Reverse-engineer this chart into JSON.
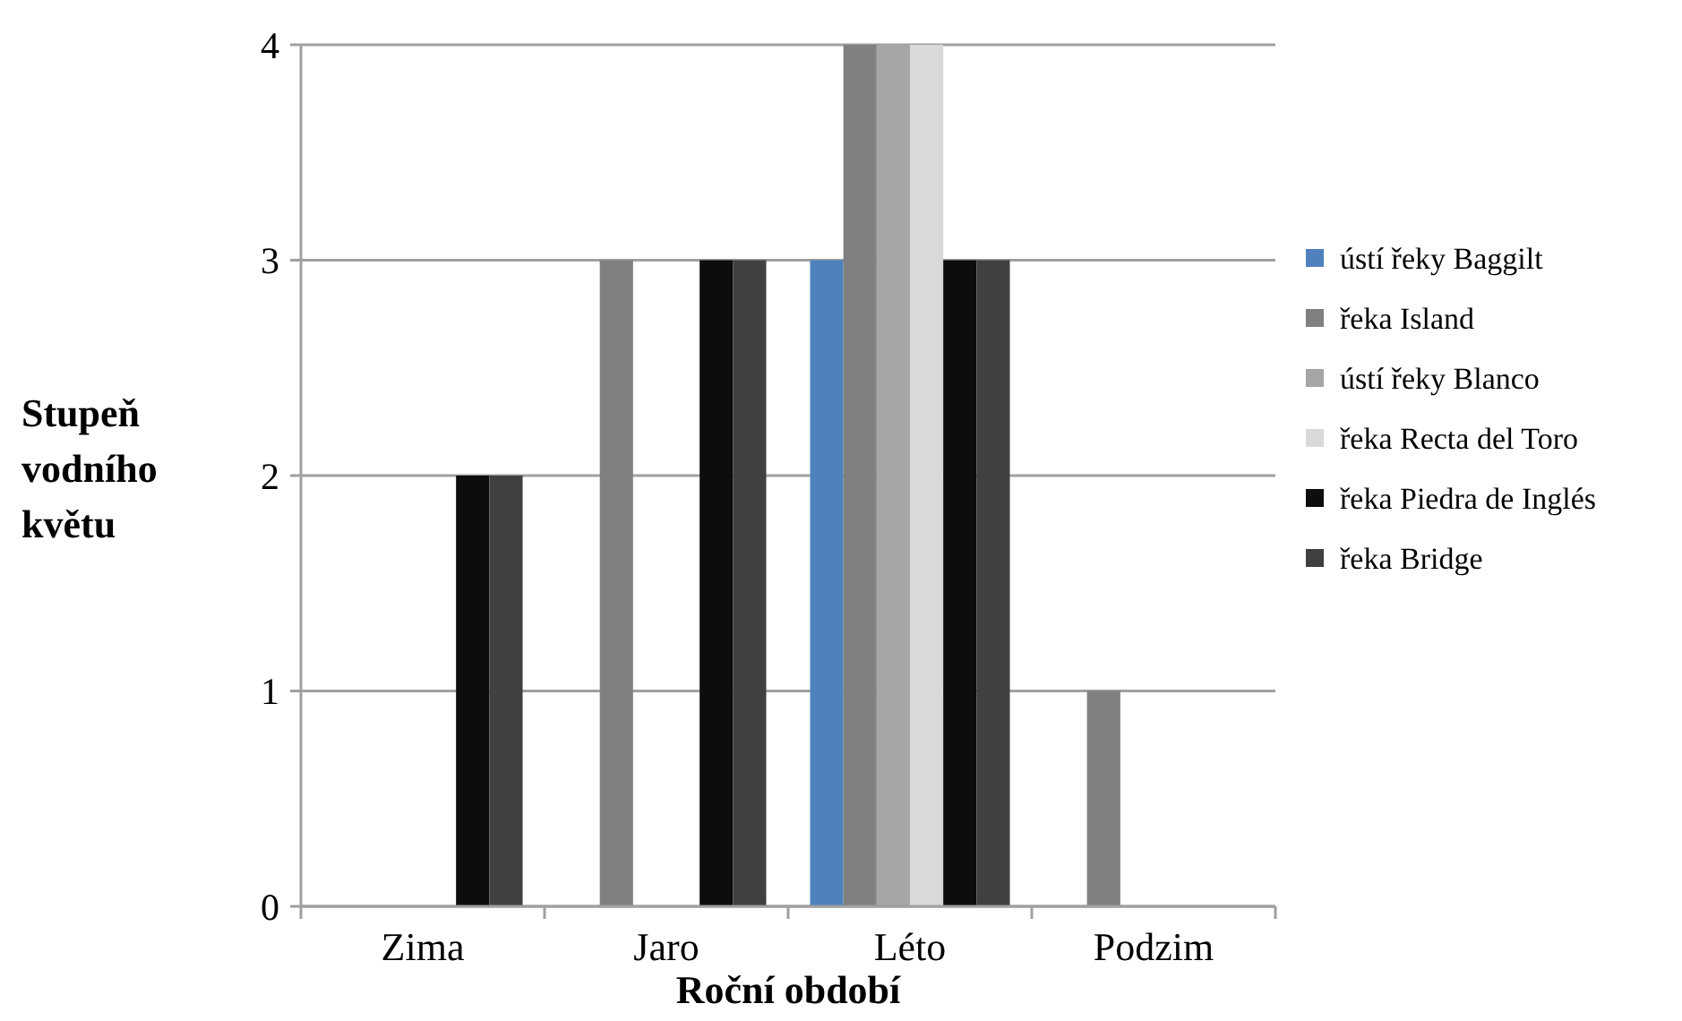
{
  "chart_data": {
    "type": "bar",
    "xlabel": "Roční období",
    "ylabel": "Stupeň vodního květu",
    "categories": [
      "Zima",
      "Jaro",
      "Léto",
      "Podzim"
    ],
    "series": [
      {
        "name": "ústí řeky Baggilt",
        "color": "#4f81bd",
        "values": [
          0,
          0,
          3,
          0
        ]
      },
      {
        "name": "řeka Island",
        "color": "#808080",
        "values": [
          0,
          3,
          4,
          1
        ]
      },
      {
        "name": "ústí řeky Blanco",
        "color": "#a6a6a6",
        "values": [
          0,
          0,
          4,
          0
        ]
      },
      {
        "name": "řeka Recta del Toro",
        "color": "#d9d9d9",
        "values": [
          0,
          0,
          4,
          0
        ]
      },
      {
        "name": "řeka Piedra de Inglés",
        "color": "#0d0d0d",
        "values": [
          2,
          3,
          3,
          0
        ]
      },
      {
        "name": "řeka Bridge",
        "color": "#404040",
        "values": [
          2,
          3,
          3,
          0
        ]
      }
    ],
    "ylim": [
      0,
      4
    ],
    "yticks": [
      0,
      1,
      2,
      3,
      4
    ],
    "grid": "y",
    "legend": "right"
  }
}
